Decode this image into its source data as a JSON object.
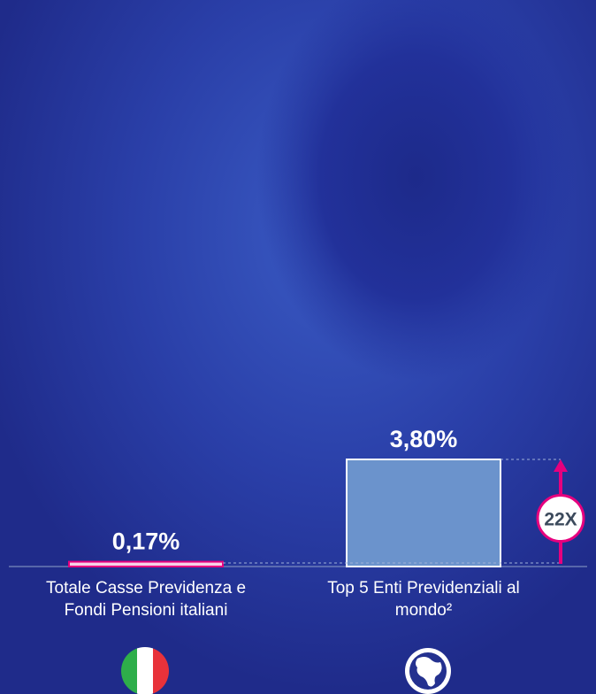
{
  "chart_data": {
    "type": "bar",
    "categories": [
      "Totale Casse Previdenza e Fondi Pensioni italiani",
      "Top 5 Enti Previdenziali al mondo²"
    ],
    "values": [
      0.17,
      3.8
    ],
    "value_labels": [
      "0,17%",
      "3,80%"
    ],
    "colors": [
      "#e6007e",
      "#6b93cc"
    ],
    "annotation": "22X"
  }
}
